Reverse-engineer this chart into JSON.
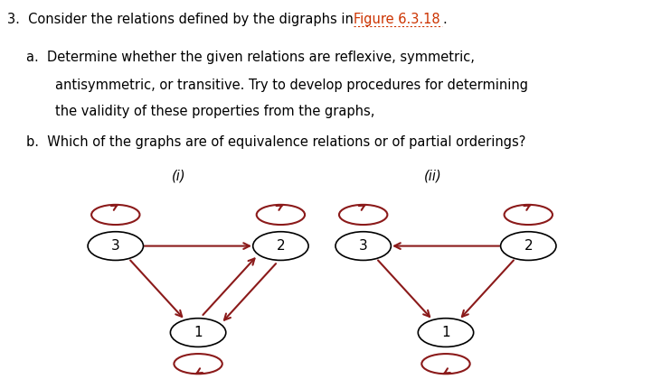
{
  "arrow_color": "#8B1A1A",
  "node_color": "#ffffff",
  "node_edge_color": "#000000",
  "text_color": "#000000",
  "link_color": "#CC3300",
  "background_color": "#ffffff",
  "graph1": {
    "nodes": {
      "3": [
        0.18,
        0.35
      ],
      "2": [
        0.44,
        0.35
      ],
      "1": [
        0.31,
        0.12
      ]
    }
  },
  "graph2": {
    "nodes": {
      "3": [
        0.57,
        0.35
      ],
      "2": [
        0.83,
        0.35
      ],
      "1": [
        0.7,
        0.12
      ]
    }
  }
}
